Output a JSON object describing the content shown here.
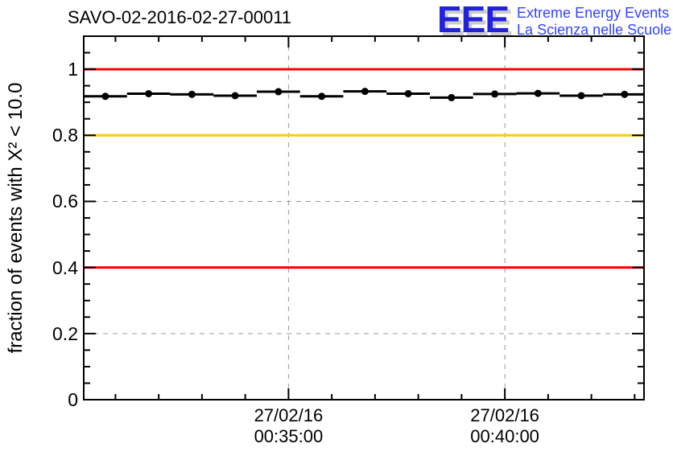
{
  "header": {
    "title": "SAVO-02-2016-02-27-00011",
    "logo": {
      "acronym": "EEE",
      "line1": "Extreme Energy Events",
      "line2": "La Scienza nelle Scuole"
    }
  },
  "colors": {
    "reference_red": "#ff0000",
    "reference_yellow": "#ffcc00",
    "series": "#000000",
    "grid": "#999999",
    "frame": "#000000",
    "logo_blue": "#2222dd",
    "logo_text_blue": "#3344ff",
    "logo_shadow": "#cccccc",
    "background": "#ffffff"
  },
  "chart_data": {
    "type": "line",
    "title": "SAVO-02-2016-02-27-00011",
    "xlabel": "",
    "ylabel": "fraction of events with X² < 10.0",
    "ylim": [
      0,
      1.1
    ],
    "grid": true,
    "legend": "none",
    "y_tick_values": [
      0,
      0.2,
      0.4,
      0.6,
      0.8,
      1
    ],
    "y_tick_labels": [
      "0",
      "0.2",
      "0.4",
      "0.6",
      "0.8",
      "1"
    ],
    "y_minor_step": 0.05,
    "x_start": "00:30:16",
    "x_end": "00:43:13",
    "x_minor_step_s": 60,
    "x_major_ticks": [
      {
        "date": "27/02/16",
        "time": "00:35:00"
      },
      {
        "date": "27/02/16",
        "time": "00:40:00"
      }
    ],
    "reference_lines": [
      {
        "y": 1.0,
        "color": "#ff0000"
      },
      {
        "y": 0.8,
        "color": "#ffcc00"
      },
      {
        "y": 0.4,
        "color": "#ff0000"
      }
    ],
    "series": [
      {
        "name": "fraction of good chi2 events",
        "color": "#000000",
        "marker": "filled-circle",
        "bin_width_s": 60,
        "points": [
          {
            "t": "00:30:46",
            "y": 0.918
          },
          {
            "t": "00:31:46",
            "y": 0.926
          },
          {
            "t": "00:32:46",
            "y": 0.924
          },
          {
            "t": "00:33:46",
            "y": 0.92
          },
          {
            "t": "00:34:46",
            "y": 0.932
          },
          {
            "t": "00:35:46",
            "y": 0.918
          },
          {
            "t": "00:36:46",
            "y": 0.933
          },
          {
            "t": "00:37:46",
            "y": 0.926
          },
          {
            "t": "00:38:46",
            "y": 0.914
          },
          {
            "t": "00:39:46",
            "y": 0.925
          },
          {
            "t": "00:40:46",
            "y": 0.927
          },
          {
            "t": "00:41:46",
            "y": 0.92
          },
          {
            "t": "00:42:46",
            "y": 0.924
          }
        ]
      }
    ]
  }
}
